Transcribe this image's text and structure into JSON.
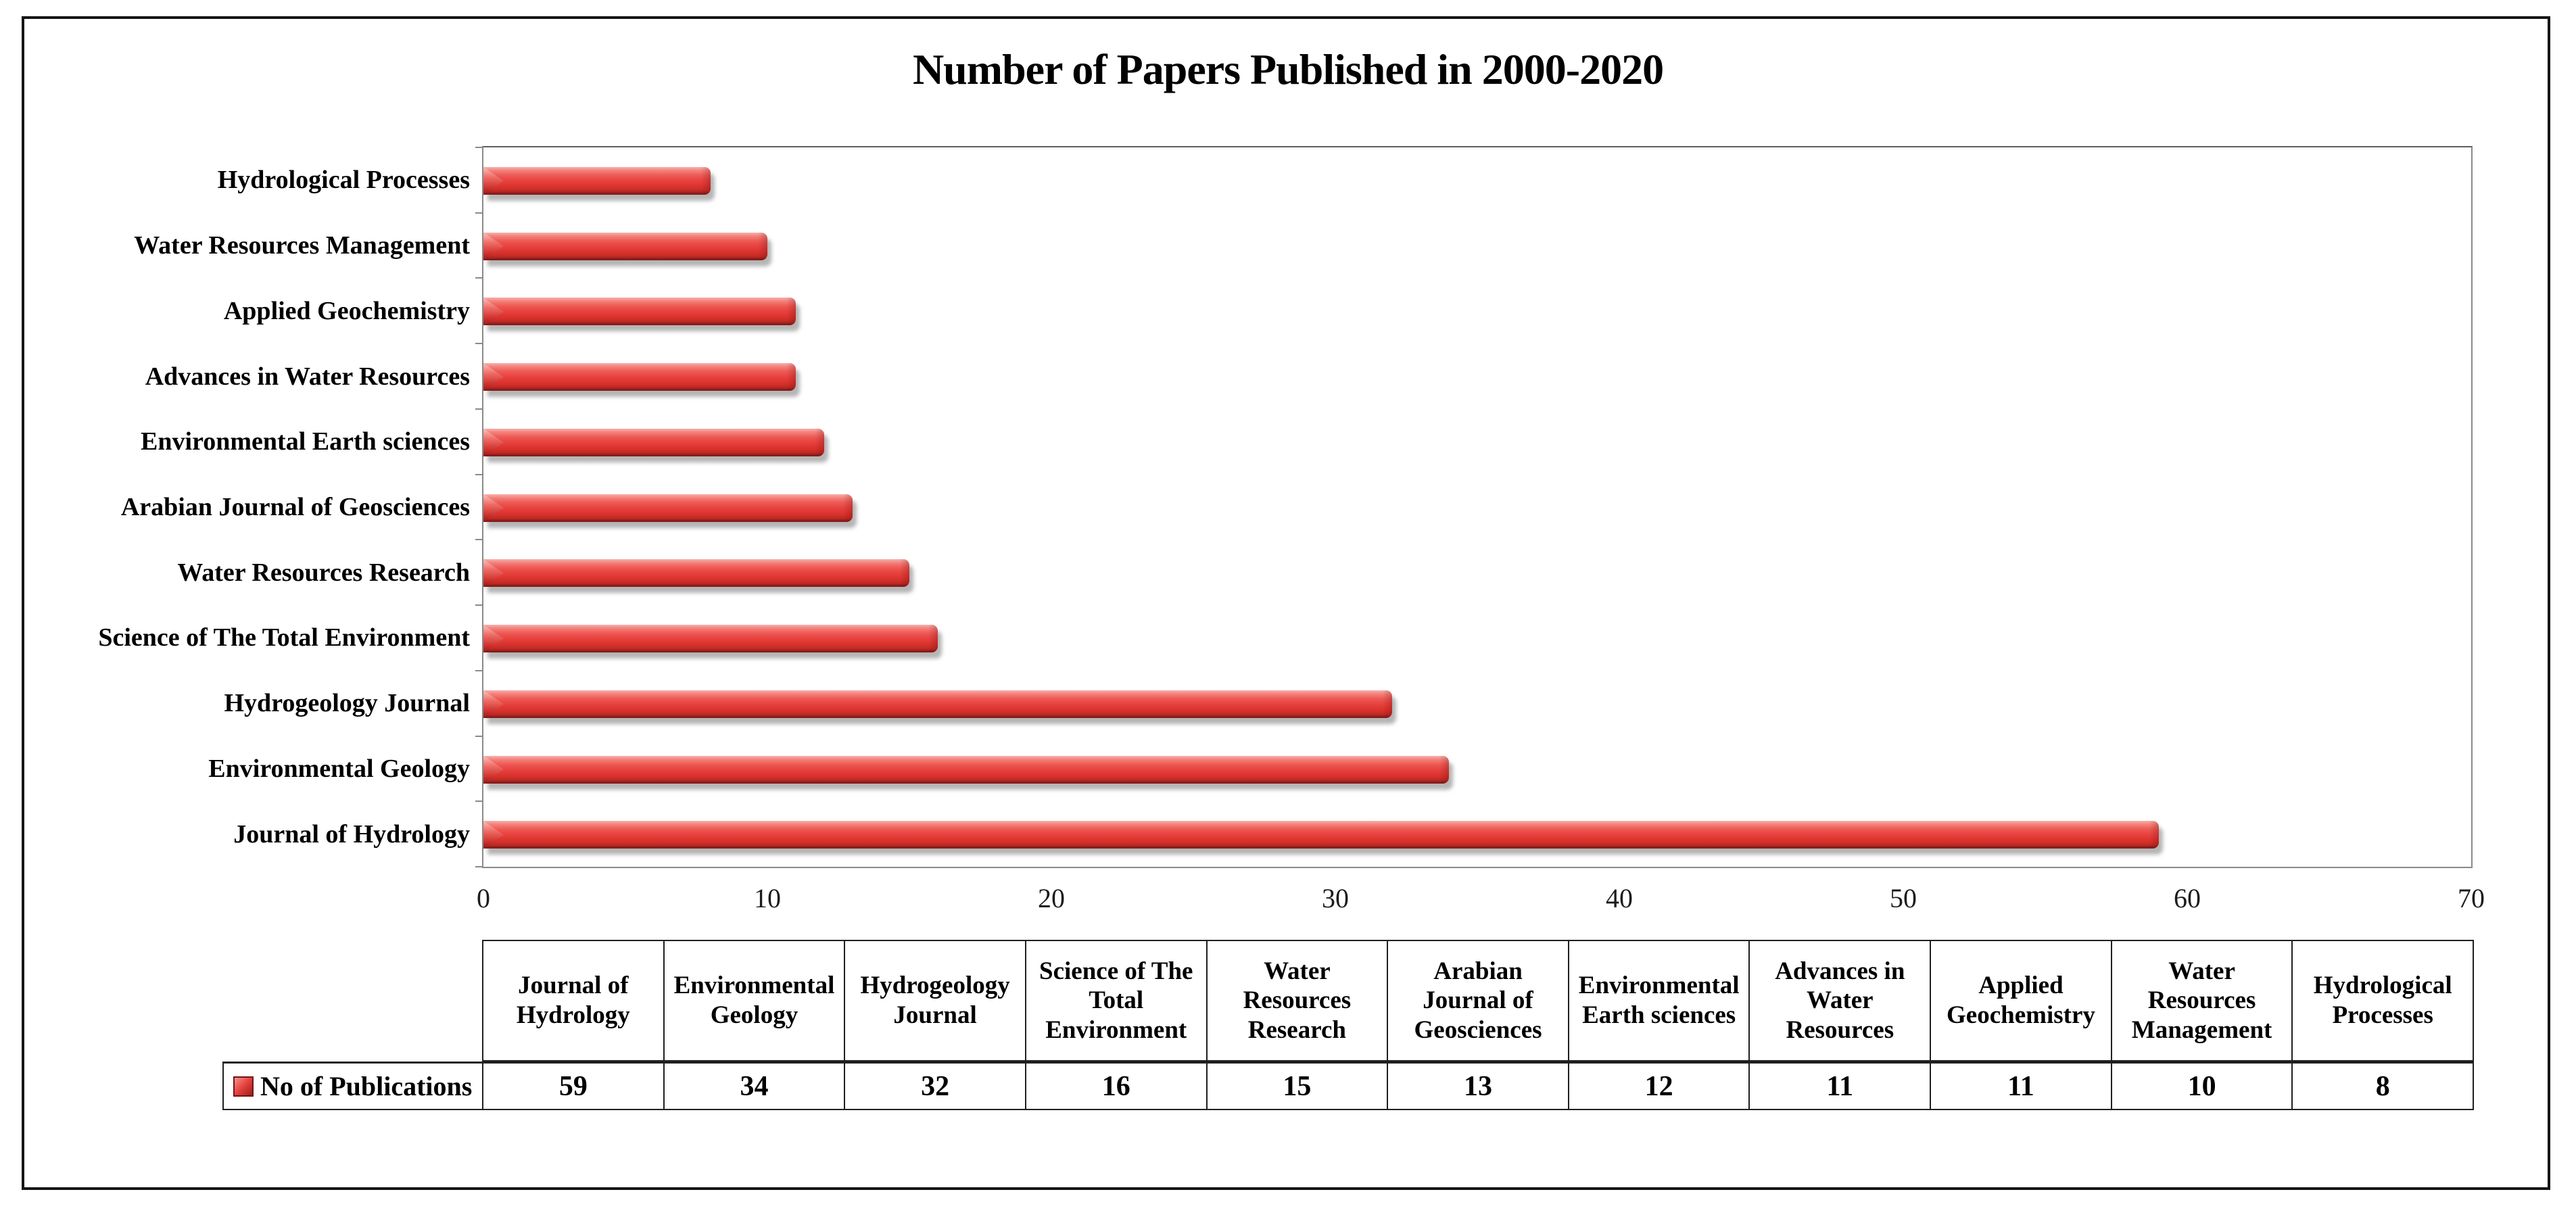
{
  "title": "Number of Papers Published in 2000-2020",
  "chart_data": {
    "type": "bar",
    "orientation": "horizontal",
    "title": "Number of Papers Published in 2000-2020",
    "xlabel": "",
    "ylabel": "",
    "xlim": [
      0,
      70
    ],
    "xticks": [
      0,
      10,
      20,
      30,
      40,
      50,
      60,
      70
    ],
    "grid": false,
    "legend_position": "bottom-table",
    "series_name": "No of Publications",
    "categories_top_to_bottom": [
      "Hydrological Processes",
      "Water Resources Management",
      "Applied Geochemistry",
      "Advances in Water Resources",
      "Environmental Earth sciences",
      "Arabian Journal of Geosciences",
      "Water Resources Research",
      "Science of The Total Environment",
      "Hydrogeology Journal",
      "Environmental Geology",
      "Journal of Hydrology"
    ],
    "values_top_to_bottom": [
      8,
      10,
      11,
      11,
      12,
      13,
      15,
      16,
      32,
      34,
      59
    ],
    "bar_color": "#e23a37",
    "bar_style": "glossy-3d-red",
    "bar_dark_edge": "#7d1714",
    "bar_highlight": "#f4837e",
    "shadow_color": "#9a9a9a",
    "plot_border_color": "#8a8a8a"
  },
  "table": {
    "row_label": "No of Publications",
    "legend_swatch_color": "#e4403d",
    "columns": [
      "Journal of Hydrology",
      "Environmental Geology",
      "Hydrogeology Journal",
      "Science of The Total Environment",
      "Water Resources Research",
      "Arabian Journal of Geosciences",
      "Environmental Earth sciences",
      "Advances in Water Resources",
      "Applied Geochemistry",
      "Water Resources Management",
      "Hydrological Processes"
    ],
    "row_values": [
      59,
      34,
      32,
      16,
      15,
      13,
      12,
      11,
      11,
      10,
      8
    ]
  },
  "colors": {
    "frame_border": "#161616",
    "table_border": "#1f1f1f",
    "text": "#000000"
  }
}
